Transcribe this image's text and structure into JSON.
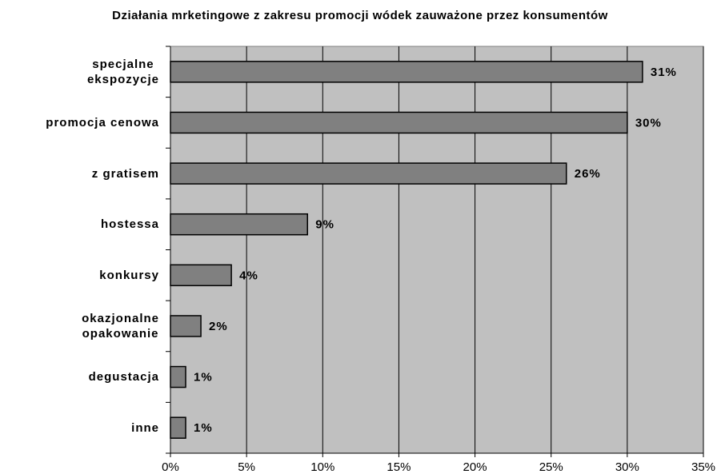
{
  "chart_data": {
    "type": "barh",
    "title": "Działania mrketingowe z zakresu promocji wódek zauważone przez konsumentów",
    "categories": [
      "specjalne\nekspozycje",
      "promocja cenowa",
      "z gratisem",
      "hostessa",
      "konkursy",
      "okazjonalne\nopakowanie",
      "degustacja",
      "inne"
    ],
    "values": [
      31,
      30,
      26,
      9,
      4,
      2,
      1,
      1
    ],
    "value_labels": [
      "31%",
      "30%",
      "26%",
      "9%",
      "4%",
      "2%",
      "1%",
      "1%"
    ],
    "color": "#808080",
    "xlim": [
      0,
      35
    ],
    "xticks": [
      {
        "value": 0,
        "label": "0%"
      },
      {
        "value": 5,
        "label": "5%"
      },
      {
        "value": 10,
        "label": "10%"
      },
      {
        "value": 15,
        "label": "15%"
      },
      {
        "value": 20,
        "label": "20%"
      },
      {
        "value": 25,
        "label": "25%"
      },
      {
        "value": 30,
        "label": "30%"
      },
      {
        "value": 35,
        "label": "35%"
      }
    ],
    "grid": true
  }
}
